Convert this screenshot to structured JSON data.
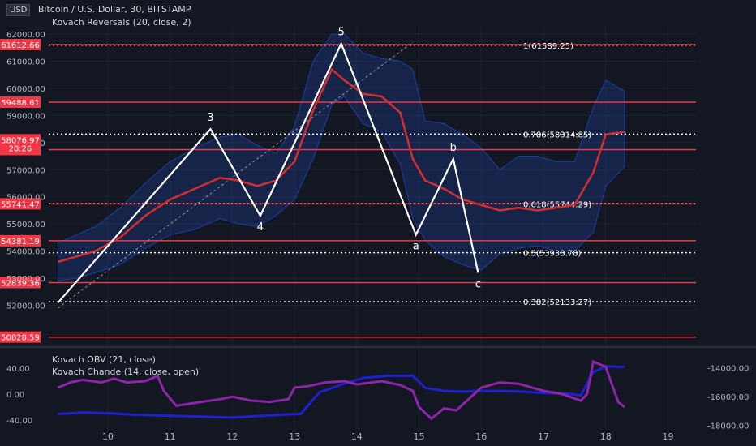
{
  "header": {
    "currency_badge": "USD",
    "title": "Bitcoin / U.S. Dollar, 30, BITSTAMP",
    "indicator": "Kovach Reversals (20, close, 2)"
  },
  "indicators": {
    "obv": "Kovach OBV (21, close)",
    "chande": "Kovach Chande (14, close, open)"
  },
  "chart_data": [
    {
      "type": "line",
      "symbol": "BTCUSD",
      "title": "Bitcoin / U.S. Dollar, 30, BITSTAMP",
      "x_ticks": [
        10,
        11,
        12,
        13,
        14,
        15,
        16,
        17,
        18,
        19
      ],
      "y_ticks": [
        "52000.00",
        "53000.00",
        "54000.00",
        "55000.00",
        "56000.00",
        "57000.00",
        "58000.00",
        "59000.00",
        "60000.00",
        "61000.00",
        "62000.00"
      ],
      "ylim": [
        50700,
        62300
      ],
      "grid": true,
      "current_price": "58076.97",
      "countdown": "20:26",
      "horizontal_levels": [
        "61612.66",
        "59488.61",
        "57742.49",
        "55741.47",
        "54381.19",
        "52839.36",
        "50828.59"
      ],
      "level_color": "#f23645",
      "fib_levels": [
        {
          "label": "1(61589.25)",
          "value": 61589.25
        },
        {
          "label": "0.786(58314.85)",
          "value": 58314.85
        },
        {
          "label": "0.618(55744.29)",
          "value": 55744.29
        },
        {
          "label": "0.5(53938.78)",
          "value": 53938.78
        },
        {
          "label": "0.382(52133.27)",
          "value": 52133.27
        }
      ],
      "wave_points": [
        {
          "label": "",
          "x": 9.2,
          "y": 52100
        },
        {
          "label": "3",
          "x": 11.65,
          "y": 58500
        },
        {
          "label": "4",
          "x": 12.45,
          "y": 55300
        },
        {
          "label": "5",
          "x": 13.75,
          "y": 61650
        },
        {
          "label": "a",
          "x": 14.95,
          "y": 54600
        },
        {
          "label": "b",
          "x": 15.55,
          "y": 57400
        },
        {
          "label": "c",
          "x": 15.95,
          "y": 53200
        }
      ],
      "trend_line": [
        {
          "x": 9.2,
          "y": 51900
        },
        {
          "x": 14.9,
          "y": 61700
        }
      ],
      "series": [
        {
          "color": "#d32f2f",
          "x": [
            9.2,
            9.5,
            9.8,
            10.2,
            10.6,
            11.0,
            11.4,
            11.8,
            12.1,
            12.4,
            12.7,
            13.0,
            13.3,
            13.6,
            13.8,
            14.1,
            14.4,
            14.7,
            14.9,
            15.1,
            15.4,
            15.7,
            16.0,
            16.3,
            16.6,
            16.9,
            17.2,
            17.5,
            17.8,
            18.0,
            18.3
          ],
          "y": [
            53600,
            53800,
            54000,
            54500,
            55300,
            55900,
            56300,
            56700,
            56600,
            56400,
            56600,
            57300,
            59200,
            60700,
            60300,
            59800,
            59700,
            59100,
            57400,
            56600,
            56300,
            55900,
            55700,
            55500,
            55600,
            55500,
            55600,
            55700,
            56900,
            58300,
            58400
          ]
        }
      ],
      "band_upper": [
        54300,
        54600,
        54900,
        55600,
        56500,
        57300,
        57800,
        58200,
        58300,
        57900,
        57600,
        58600,
        61000,
        62000,
        62000,
        61300,
        61100,
        61000,
        60700,
        58800,
        58700,
        58300,
        57800,
        57000,
        57500,
        57500,
        57300,
        57300,
        59300,
        60300,
        59900
      ],
      "band_lower": [
        52900,
        53000,
        53200,
        53500,
        54100,
        54600,
        54800,
        55200,
        55000,
        54900,
        55300,
        55900,
        57400,
        59400,
        59700,
        58700,
        58400,
        57200,
        55200,
        54400,
        53800,
        53500,
        53300,
        53900,
        54100,
        54200,
        54000,
        54000,
        54700,
        56400,
        57100
      ]
    },
    {
      "type": "line",
      "title": "Kovach OBV (21, close) / Kovach Chande (14, close, open)",
      "left_ticks": [
        "40.00",
        "0.00",
        "-40.00"
      ],
      "left_lim": [
        -55,
        65
      ],
      "right_ticks": [
        "-14000.00",
        "-16000.00",
        "-18000.00"
      ],
      "right_lim": [
        -18300,
        -12900
      ],
      "series": [
        {
          "name": "Kovach OBV (21, close)",
          "color": "#1f1fcf",
          "axis": "right",
          "x": [
            9.2,
            9.6,
            10.0,
            10.4,
            10.8,
            11.2,
            11.6,
            12.0,
            12.4,
            12.8,
            13.1,
            13.4,
            13.8,
            14.1,
            14.5,
            14.9,
            15.1,
            15.4,
            15.7,
            16.0,
            16.5,
            17.0,
            17.4,
            17.6,
            17.8,
            18.0,
            18.3
          ],
          "y": [
            -17200,
            -17100,
            -17150,
            -17250,
            -17300,
            -17350,
            -17400,
            -17450,
            -17350,
            -17250,
            -17200,
            -15700,
            -15100,
            -14700,
            -14550,
            -14550,
            -15400,
            -15600,
            -15650,
            -15600,
            -15620,
            -15750,
            -15800,
            -15900,
            -14300,
            -13900,
            -13950
          ]
        },
        {
          "name": "Kovach Chande (14, close, open)",
          "color": "#8e24aa",
          "axis": "left",
          "x": [
            9.2,
            9.4,
            9.6,
            9.9,
            10.1,
            10.3,
            10.6,
            10.8,
            10.9,
            11.1,
            11.5,
            11.8,
            12.0,
            12.3,
            12.6,
            12.9,
            13.0,
            13.2,
            13.5,
            13.8,
            14.0,
            14.4,
            14.7,
            14.9,
            15.0,
            15.2,
            15.4,
            15.6,
            16.0,
            16.3,
            16.6,
            17.0,
            17.3,
            17.6,
            17.7,
            17.8,
            18.0,
            18.2,
            18.3
          ],
          "y": [
            10,
            18,
            22,
            18,
            24,
            18,
            20,
            28,
            5,
            -18,
            -12,
            -8,
            -4,
            -10,
            -12,
            -8,
            10,
            12,
            18,
            20,
            15,
            20,
            14,
            5,
            -20,
            -38,
            -22,
            -25,
            10,
            18,
            16,
            5,
            0,
            -10,
            0,
            50,
            42,
            -12,
            -20
          ]
        }
      ]
    }
  ]
}
